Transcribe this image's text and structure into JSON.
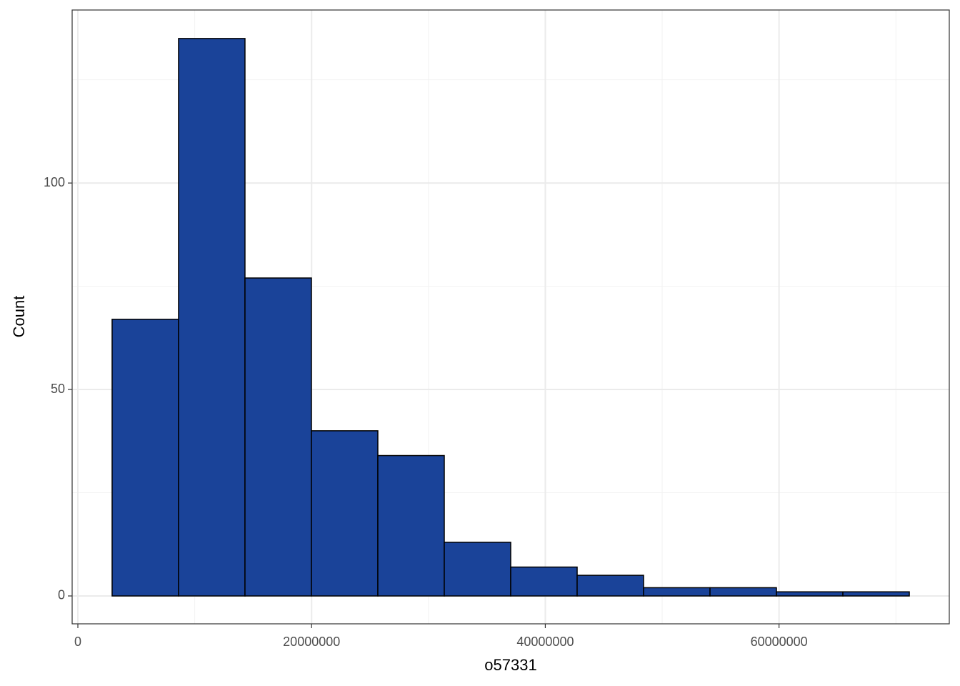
{
  "chart_data": {
    "type": "histogram",
    "x_label": "o57331",
    "y_label": "Count",
    "bins": [
      2930000,
      8615000,
      14300000,
      19985000,
      25670000,
      31355000,
      37040000,
      42725000,
      48410000,
      54095000,
      59780000,
      65465000,
      71150000
    ],
    "values": [
      67,
      135,
      77,
      40,
      34,
      13,
      7,
      5,
      2,
      2,
      1,
      1
    ],
    "color": "#1a4399",
    "edge_color": "#000000",
    "xlim": [
      -490000,
      74570000
    ],
    "xticks": [
      0,
      20000000,
      40000000,
      60000000
    ],
    "xminor": [
      10000000,
      30000000,
      50000000,
      70000000
    ],
    "ylim": [
      -6.75,
      141.9
    ],
    "yticks": [
      0,
      50,
      100
    ],
    "yminor": [
      25,
      75,
      125
    ],
    "grid": true
  }
}
